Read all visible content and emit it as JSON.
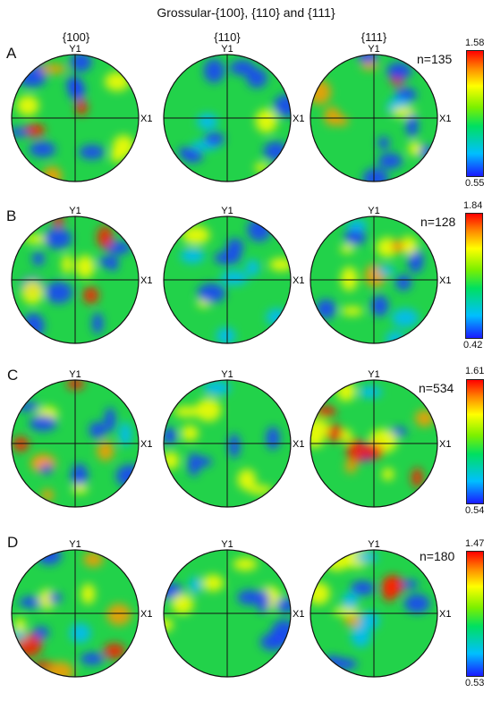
{
  "title": "Grossular-{100}, {110} and {111}",
  "column_headers": [
    "{100}",
    "{110}",
    "{111}"
  ],
  "axis_labels": {
    "y": "Y1",
    "x": "X1"
  },
  "rows": [
    {
      "label": "A",
      "count": "n=135",
      "max": "1.58",
      "min": "0.55",
      "seed": 11
    },
    {
      "label": "B",
      "count": "n=128",
      "max": "1.84",
      "min": "0.42",
      "seed": 29
    },
    {
      "label": "C",
      "count": "n=534",
      "max": "1.61",
      "min": "0.54",
      "seed": 47
    },
    {
      "label": "D",
      "count": "n=180",
      "max": "1.47",
      "min": "0.53",
      "seed": 73
    }
  ],
  "colors": {
    "low": "#1a1aff",
    "mid": "#00e060",
    "high": "#ff0000",
    "background_green": "#22d24a"
  }
}
